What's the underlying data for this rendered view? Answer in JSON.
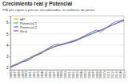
{
  "chart_data": {
    "type": "line",
    "title": "Crecimiento real y Potencial",
    "subtitle": "PIB per cápita a precios encadenados, en millones de pesos",
    "x": [
      1986,
      1987,
      1988,
      1989,
      1990,
      1991,
      1992,
      1993,
      1994,
      1995,
      1996,
      1997,
      1998,
      1999,
      2000,
      2001,
      2002,
      2003,
      2004,
      2005,
      2006,
      2007,
      2008,
      2009,
      2010,
      2011,
      2012,
      2013,
      2014,
      2015
    ],
    "series": [
      {
        "name": "HP",
        "color": "#f4a300",
        "values": [
          2.05,
          2.2,
          2.36,
          2.52,
          2.69,
          2.86,
          3.03,
          3.2,
          3.37,
          3.54,
          3.7,
          3.84,
          3.95,
          4.04,
          4.13,
          4.23,
          4.34,
          4.46,
          4.6,
          4.75,
          4.9,
          5.05,
          5.18,
          5.32,
          5.47,
          5.63,
          5.79,
          5.94,
          6.08,
          6.21
        ]
      },
      {
        "name": "Potencial 1",
        "color": "#3cb44b",
        "values": [
          2.1,
          2.25,
          2.4,
          2.56,
          2.72,
          2.89,
          3.06,
          3.23,
          3.4,
          3.56,
          3.72,
          3.86,
          3.98,
          4.08,
          4.18,
          4.28,
          4.39,
          4.51,
          4.64,
          4.78,
          4.92,
          5.06,
          5.2,
          5.34,
          5.49,
          5.64,
          5.79,
          5.93,
          6.07,
          6.2
        ]
      },
      {
        "name": "Potencial 2",
        "color": "#4363d8",
        "values": [
          2.0,
          2.15,
          2.31,
          2.47,
          2.64,
          2.81,
          2.98,
          3.15,
          3.32,
          3.49,
          3.65,
          3.8,
          3.92,
          4.02,
          4.12,
          4.22,
          4.33,
          4.45,
          4.58,
          4.72,
          4.87,
          5.02,
          5.16,
          5.3,
          5.45,
          5.61,
          5.77,
          5.92,
          6.06,
          6.19
        ]
      },
      {
        "name": "Real",
        "color": "#9b30c0",
        "values": [
          2.05,
          2.17,
          2.3,
          2.51,
          2.56,
          2.73,
          2.99,
          3.14,
          3.27,
          3.56,
          3.77,
          3.99,
          4.07,
          3.99,
          4.13,
          4.21,
          4.28,
          4.41,
          4.64,
          4.85,
          5.02,
          5.21,
          5.33,
          5.16,
          5.4,
          5.67,
          5.92,
          6.11,
          6.16,
          6.26
        ]
      }
    ],
    "xlim": [
      1986,
      2015
    ],
    "xticks": [
      1986,
      1987,
      1988,
      1989,
      1990,
      1991,
      1992,
      1993,
      1994,
      1995,
      1996,
      1997,
      1998,
      1999,
      2000,
      2001,
      2002,
      2003,
      2004,
      2005,
      2006,
      2007,
      2008,
      2009,
      2010,
      2011,
      2012,
      2013,
      2014,
      2015
    ],
    "ylim": [
      1.8,
      6.6
    ],
    "yticks": [
      2,
      3,
      4,
      5,
      6
    ],
    "grid": true,
    "legend": "top-left"
  }
}
